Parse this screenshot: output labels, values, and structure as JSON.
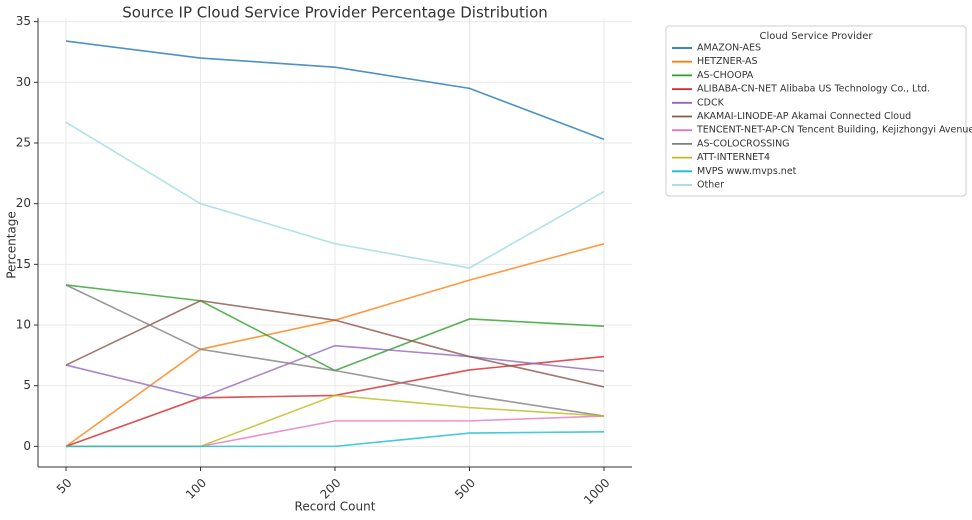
{
  "chart_data": {
    "type": "line",
    "title": "Source IP Cloud Service Provider Percentage Distribution",
    "x_label": "Record Count",
    "y_label": "Percentage",
    "categories": [
      "50",
      "100",
      "200",
      "500",
      "1000"
    ],
    "ylim": [
      -1.7,
      35.3
    ],
    "yticks": [
      0,
      5,
      10,
      15,
      20,
      25,
      30,
      35
    ],
    "grid": true,
    "legend": "right",
    "legend_title": "Cloud Service Provider",
    "series": [
      {
        "name": "AMAZON-AES",
        "color": "#1f77b4",
        "values": [
          33.4,
          32.0,
          31.25,
          29.5,
          25.3
        ]
      },
      {
        "name": "HETZNER-AS",
        "color": "#ff7f0e",
        "values": [
          0,
          8.0,
          10.4,
          13.7,
          16.7
        ]
      },
      {
        "name": "AS-CHOOPA",
        "color": "#2ca02c",
        "values": [
          13.3,
          12.0,
          6.25,
          10.5,
          9.9
        ]
      },
      {
        "name": "ALIBABA-CN-NET Alibaba US Technology Co., Ltd.",
        "color": "#d62728",
        "values": [
          0,
          4.0,
          4.2,
          6.3,
          7.4
        ]
      },
      {
        "name": "CDCK",
        "color": "#9467bd",
        "values": [
          6.7,
          4.0,
          8.3,
          7.4,
          6.2
        ]
      },
      {
        "name": "AKAMAI-LINODE-AP Akamai Connected Cloud",
        "color": "#8c564b",
        "values": [
          6.7,
          12.0,
          10.4,
          7.4,
          4.9
        ]
      },
      {
        "name": "TENCENT-NET-AP-CN Tencent Building, Kejizhongyi Avenue",
        "color": "#e377c2",
        "values": [
          0,
          0,
          2.1,
          2.1,
          2.5
        ]
      },
      {
        "name": "AS-COLOCROSSING",
        "color": "#7f7f7f",
        "values": [
          13.3,
          8.0,
          6.25,
          4.2,
          2.5
        ]
      },
      {
        "name": "ATT-INTERNET4",
        "color": "#bcbd22",
        "values": [
          0,
          0,
          4.2,
          3.2,
          2.5
        ]
      },
      {
        "name": "MVPS www.mvps.net",
        "color": "#17becf",
        "values": [
          0,
          0,
          0,
          1.1,
          1.2
        ]
      },
      {
        "name": "Other",
        "color": "#9edae5",
        "values": [
          26.7,
          20.0,
          16.7,
          14.7,
          21.0
        ]
      }
    ]
  }
}
